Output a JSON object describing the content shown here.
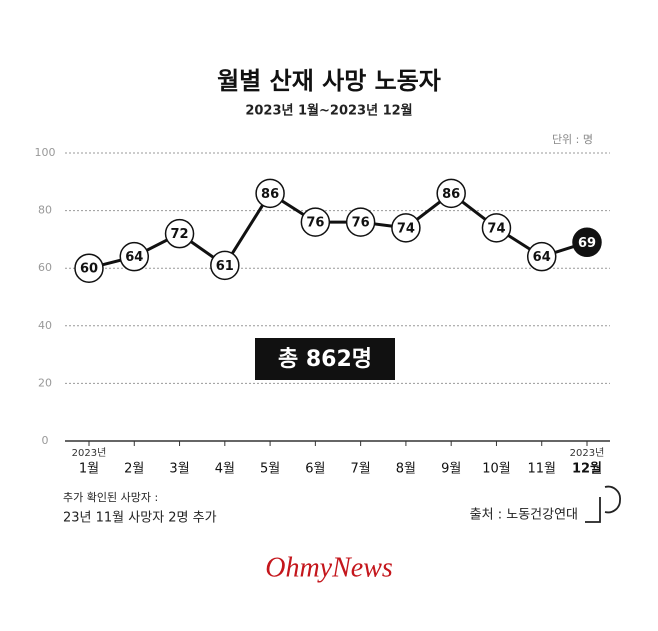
{
  "chart_data": {
    "type": "line",
    "title": "월별 산재 사망 노동자",
    "subtitle": "2023년 1월~2023년 12월",
    "unit_label": "단위 : 명",
    "categories": [
      "1월",
      "2월",
      "3월",
      "4월",
      "5월",
      "6월",
      "7월",
      "8월",
      "9월",
      "10월",
      "11월",
      "12월"
    ],
    "category_sublabels": [
      "2023년",
      null,
      null,
      null,
      null,
      null,
      null,
      null,
      null,
      null,
      null,
      "2023년"
    ],
    "series": [
      {
        "name": "사망 노동자",
        "color": "#111111",
        "values": [
          60,
          64,
          72,
          61,
          86,
          76,
          76,
          74,
          86,
          74,
          64,
          69
        ]
      }
    ],
    "ylim": [
      0,
      100
    ],
    "yticks": [
      0,
      20,
      40,
      60,
      80,
      100
    ],
    "grid": true,
    "annotation": "총 862명",
    "notes": [
      "추가 확인된 사망자 :",
      "23년 11월 사망자 2명 추가"
    ],
    "source": "출처 : 노동건강연대",
    "brand": "OhmyNews"
  }
}
